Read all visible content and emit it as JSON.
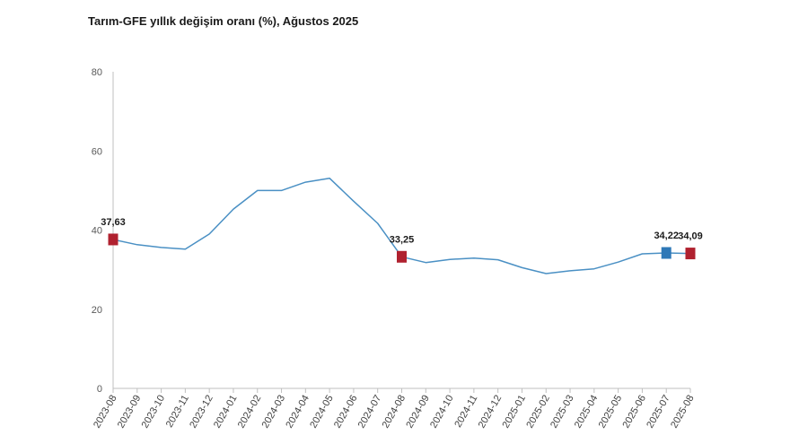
{
  "chart_data": {
    "type": "line",
    "title": "Tarım-GFE yıllık değişim oranı (%), Ağustos 2025",
    "xlabel": "",
    "ylabel": "",
    "ylim": [
      0,
      80
    ],
    "yticks": [
      "0",
      "20",
      "40",
      "60",
      "80"
    ],
    "grid": false,
    "categories": [
      "2023-08",
      "2023-09",
      "2023-10",
      "2023-11",
      "2023-12",
      "2024-01",
      "2024-02",
      "2024-03",
      "2024-04",
      "2024-05",
      "2024-06",
      "2024-07",
      "2024-08",
      "2024-09",
      "2024-10",
      "2024-11",
      "2024-12",
      "2025-01",
      "2025-02",
      "2025-03",
      "2025-04",
      "2025-05",
      "2025-06",
      "2025-07",
      "2025-08"
    ],
    "series": [
      {
        "values": [
          37.63,
          36.3,
          35.6,
          35.2,
          39.0,
          45.3,
          50.0,
          50.0,
          52.1,
          53.1,
          47.3,
          41.7,
          33.25,
          31.8,
          32.6,
          32.9,
          32.5,
          30.5,
          29.0,
          29.7,
          30.2,
          31.9,
          34.0,
          34.22,
          34.09
        ],
        "color": "#4a90c4"
      }
    ],
    "markers": [
      {
        "index": 0,
        "label": "37,63",
        "color": "#b0212f"
      },
      {
        "index": 12,
        "label": "33,25",
        "color": "#b0212f"
      },
      {
        "index": 23,
        "label": "34,22",
        "color": "#2e78b7"
      },
      {
        "index": 24,
        "label": "34,09",
        "color": "#b0212f"
      }
    ]
  }
}
